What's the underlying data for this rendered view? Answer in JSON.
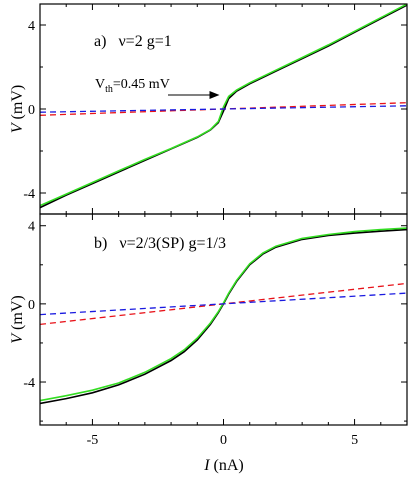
{
  "colors": {
    "black": "#000000",
    "green": "#33dd22",
    "red": "#e8131a",
    "blue": "#1a1ae0"
  },
  "axis_labels": {
    "x_var": "I",
    "x_unit": "(nA)",
    "y_var": "V",
    "y_unit": "(mV)"
  },
  "chart_data": [
    {
      "type": "line",
      "panel_label": "a)",
      "title": "ν=2 g=1",
      "xlim": [
        -7,
        7
      ],
      "ylim": [
        -5,
        5
      ],
      "xticks": [
        -5,
        0,
        5
      ],
      "yticks": [
        -4,
        0,
        4
      ],
      "ytick_labels": [
        "-4",
        "0",
        "4"
      ],
      "xlabel": "",
      "ylabel": "V (mV)",
      "annotation": {
        "text_main": "V",
        "text_sub": "th",
        "text_rest": "=0.45 mV",
        "arrow_to": [
          0.0,
          0.45
        ]
      },
      "series": [
        {
          "color": "black",
          "dashed": false,
          "x": [
            -7,
            -6,
            -5,
            -4,
            -3,
            -2,
            -1,
            -0.5,
            -0.2,
            0,
            0.2,
            0.5,
            1,
            2,
            3,
            4,
            5,
            6,
            7
          ],
          "y": [
            -4.7,
            -4.1,
            -3.55,
            -3.0,
            -2.45,
            -1.9,
            -1.35,
            -1.0,
            -0.65,
            -0.1,
            0.5,
            0.85,
            1.2,
            1.8,
            2.4,
            3.0,
            3.65,
            4.3,
            4.95
          ]
        },
        {
          "color": "green",
          "dashed": false,
          "x": [
            -7,
            -6,
            -5,
            -4,
            -3,
            -2,
            -1,
            -0.5,
            -0.2,
            0,
            0.2,
            0.5,
            1,
            2,
            3,
            4,
            5,
            6,
            7
          ],
          "y": [
            -4.6,
            -4.05,
            -3.5,
            -2.95,
            -2.4,
            -1.88,
            -1.33,
            -0.98,
            -0.6,
            0.1,
            0.6,
            0.9,
            1.25,
            1.85,
            2.45,
            3.05,
            3.7,
            4.35,
            5.0
          ]
        },
        {
          "color": "red",
          "dashed": true,
          "x": [
            -7,
            7
          ],
          "y": [
            -0.3,
            0.3
          ]
        },
        {
          "color": "blue",
          "dashed": true,
          "x": [
            -7,
            7
          ],
          "y": [
            -0.15,
            0.15
          ]
        }
      ]
    },
    {
      "type": "line",
      "panel_label": "b)",
      "title": "ν=2/3(SP) g=1/3",
      "xlim": [
        -7,
        7
      ],
      "ylim": [
        -6.2,
        4.6
      ],
      "xticks": [
        -5,
        0,
        5
      ],
      "xtick_labels": [
        "-5",
        "0",
        "5"
      ],
      "yticks": [
        -4,
        0,
        4
      ],
      "ytick_labels": [
        "-4",
        "0",
        "4"
      ],
      "xlabel": "I (nA)",
      "ylabel": "V (mV)",
      "series": [
        {
          "color": "black",
          "dashed": false,
          "x": [
            -7,
            -6,
            -5,
            -4,
            -3,
            -2,
            -1.5,
            -1,
            -0.5,
            -0.2,
            0,
            0.2,
            0.5,
            1,
            1.5,
            2,
            3,
            4,
            5,
            6,
            7
          ],
          "y": [
            -5.1,
            -4.85,
            -4.55,
            -4.15,
            -3.6,
            -2.9,
            -2.45,
            -1.85,
            -1.05,
            -0.45,
            0,
            0.5,
            1.15,
            2.0,
            2.55,
            2.9,
            3.3,
            3.5,
            3.62,
            3.72,
            3.8
          ]
        },
        {
          "color": "green",
          "dashed": false,
          "x": [
            -7,
            -6,
            -5,
            -4,
            -3,
            -2,
            -1.5,
            -1,
            -0.5,
            -0.2,
            0,
            0.2,
            0.5,
            1,
            1.5,
            2,
            3,
            4,
            5,
            6,
            7
          ],
          "y": [
            -4.95,
            -4.7,
            -4.42,
            -4.05,
            -3.5,
            -2.8,
            -2.35,
            -1.75,
            -0.98,
            -0.4,
            0.05,
            0.55,
            1.2,
            2.05,
            2.6,
            2.95,
            3.35,
            3.55,
            3.7,
            3.8,
            3.88
          ]
        },
        {
          "color": "red",
          "dashed": true,
          "x": [
            -7,
            7
          ],
          "y": [
            -1.05,
            1.05
          ]
        },
        {
          "color": "blue",
          "dashed": true,
          "x": [
            -7,
            7
          ],
          "y": [
            -0.55,
            0.55
          ]
        }
      ]
    }
  ]
}
